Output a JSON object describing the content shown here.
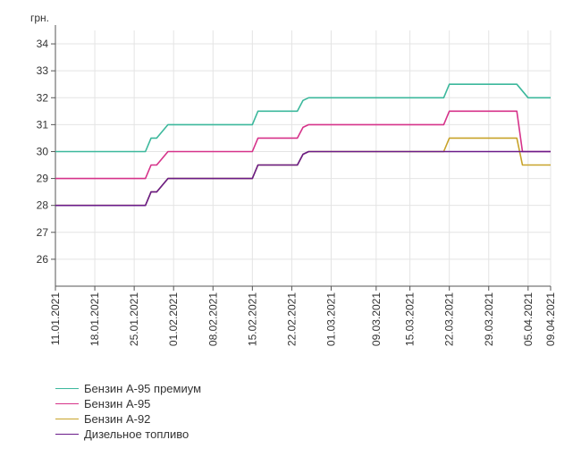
{
  "chart_data": {
    "type": "line",
    "ylabel": "грн.",
    "ylim": [
      25,
      34.5
    ],
    "yticks": [
      26,
      27,
      28,
      29,
      30,
      31,
      32,
      33,
      34
    ],
    "x_start": "11.01.2021",
    "x_end": "09.04.2021",
    "xticks": [
      "11.01.2021",
      "18.01.2021",
      "25.01.2021",
      "01.02.2021",
      "08.02.2021",
      "15.02.2021",
      "22.02.2021",
      "01.03.2021",
      "09.03.2021",
      "15.03.2021",
      "22.03.2021",
      "29.03.2021",
      "05.04.2021",
      "09.04.2021"
    ],
    "grid": true,
    "legend_position": "bottom-left",
    "series": [
      {
        "name": "Бензин А-95 премиум",
        "color": "#3cb89c",
        "points": [
          [
            "11.01.2021",
            30
          ],
          [
            "27.01.2021",
            30
          ],
          [
            "28.01.2021",
            30.5
          ],
          [
            "29.01.2021",
            30.5
          ],
          [
            "31.01.2021",
            31
          ],
          [
            "15.02.2021",
            31
          ],
          [
            "16.02.2021",
            31.5
          ],
          [
            "23.02.2021",
            31.5
          ],
          [
            "24.02.2021",
            31.9
          ],
          [
            "25.02.2021",
            32
          ],
          [
            "21.03.2021",
            32
          ],
          [
            "22.03.2021",
            32.5
          ],
          [
            "03.04.2021",
            32.5
          ],
          [
            "05.04.2021",
            32
          ],
          [
            "09.04.2021",
            32
          ]
        ]
      },
      {
        "name": "Бензин А-95",
        "color": "#d6338a",
        "points": [
          [
            "11.01.2021",
            29
          ],
          [
            "27.01.2021",
            29
          ],
          [
            "28.01.2021",
            29.5
          ],
          [
            "29.01.2021",
            29.5
          ],
          [
            "31.01.2021",
            30
          ],
          [
            "15.02.2021",
            30
          ],
          [
            "16.02.2021",
            30.5
          ],
          [
            "23.02.2021",
            30.5
          ],
          [
            "24.02.2021",
            30.9
          ],
          [
            "25.02.2021",
            31
          ],
          [
            "21.03.2021",
            31
          ],
          [
            "22.03.2021",
            31.5
          ],
          [
            "03.04.2021",
            31.5
          ],
          [
            "04.04.2021",
            30
          ],
          [
            "09.04.2021",
            30
          ]
        ]
      },
      {
        "name": "Бензин А-92",
        "color": "#c8a32a",
        "points": [
          [
            "11.01.2021",
            28
          ],
          [
            "27.01.2021",
            28
          ],
          [
            "28.01.2021",
            28.5
          ],
          [
            "29.01.2021",
            28.5
          ],
          [
            "31.01.2021",
            29
          ],
          [
            "15.02.2021",
            29
          ],
          [
            "16.02.2021",
            29.5
          ],
          [
            "23.02.2021",
            29.5
          ],
          [
            "24.02.2021",
            29.9
          ],
          [
            "25.02.2021",
            30
          ],
          [
            "21.03.2021",
            30
          ],
          [
            "22.03.2021",
            30.5
          ],
          [
            "03.04.2021",
            30.5
          ],
          [
            "04.04.2021",
            29.5
          ],
          [
            "09.04.2021",
            29.5
          ]
        ]
      },
      {
        "name": "Дизельное топливо",
        "color": "#6a1b8a",
        "points": [
          [
            "11.01.2021",
            28
          ],
          [
            "27.01.2021",
            28
          ],
          [
            "28.01.2021",
            28.5
          ],
          [
            "29.01.2021",
            28.5
          ],
          [
            "31.01.2021",
            29
          ],
          [
            "15.02.2021",
            29
          ],
          [
            "16.02.2021",
            29.5
          ],
          [
            "23.02.2021",
            29.5
          ],
          [
            "24.02.2021",
            29.9
          ],
          [
            "25.02.2021",
            30
          ],
          [
            "09.04.2021",
            30
          ]
        ]
      }
    ]
  }
}
